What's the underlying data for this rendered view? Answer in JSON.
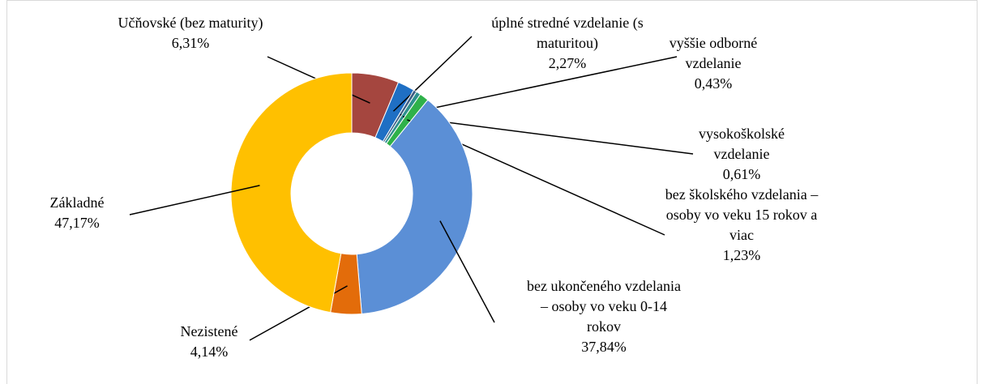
{
  "chart_data": {
    "type": "donut",
    "categories": [
      "Učňovské (bez maturity)",
      "úplné stredné vzdelanie (s maturitou)",
      "vyššie odborné vzdelanie",
      "vysokoškolské vzdelanie",
      "bez školského vzdelania – osoby vo veku 15 rokov a viac",
      "bez ukončeného vzdelania – osoby vo veku 0-14 rokov",
      "Nezistené",
      "Základné"
    ],
    "values": [
      6.31,
      2.27,
      0.43,
      0.61,
      1.23,
      37.84,
      4.14,
      47.17
    ],
    "value_labels": [
      "6,31%",
      "2,27%",
      "0,43%",
      "0,61%",
      "1,23%",
      "37,84%",
      "4,14%",
      "47,17%"
    ],
    "colors": [
      "#a5463f",
      "#1f6fc4",
      "#3e5f86",
      "#2f8f8f",
      "#2fb14a",
      "#5b8fd6",
      "#e36c0a",
      "#ffc000"
    ]
  }
}
